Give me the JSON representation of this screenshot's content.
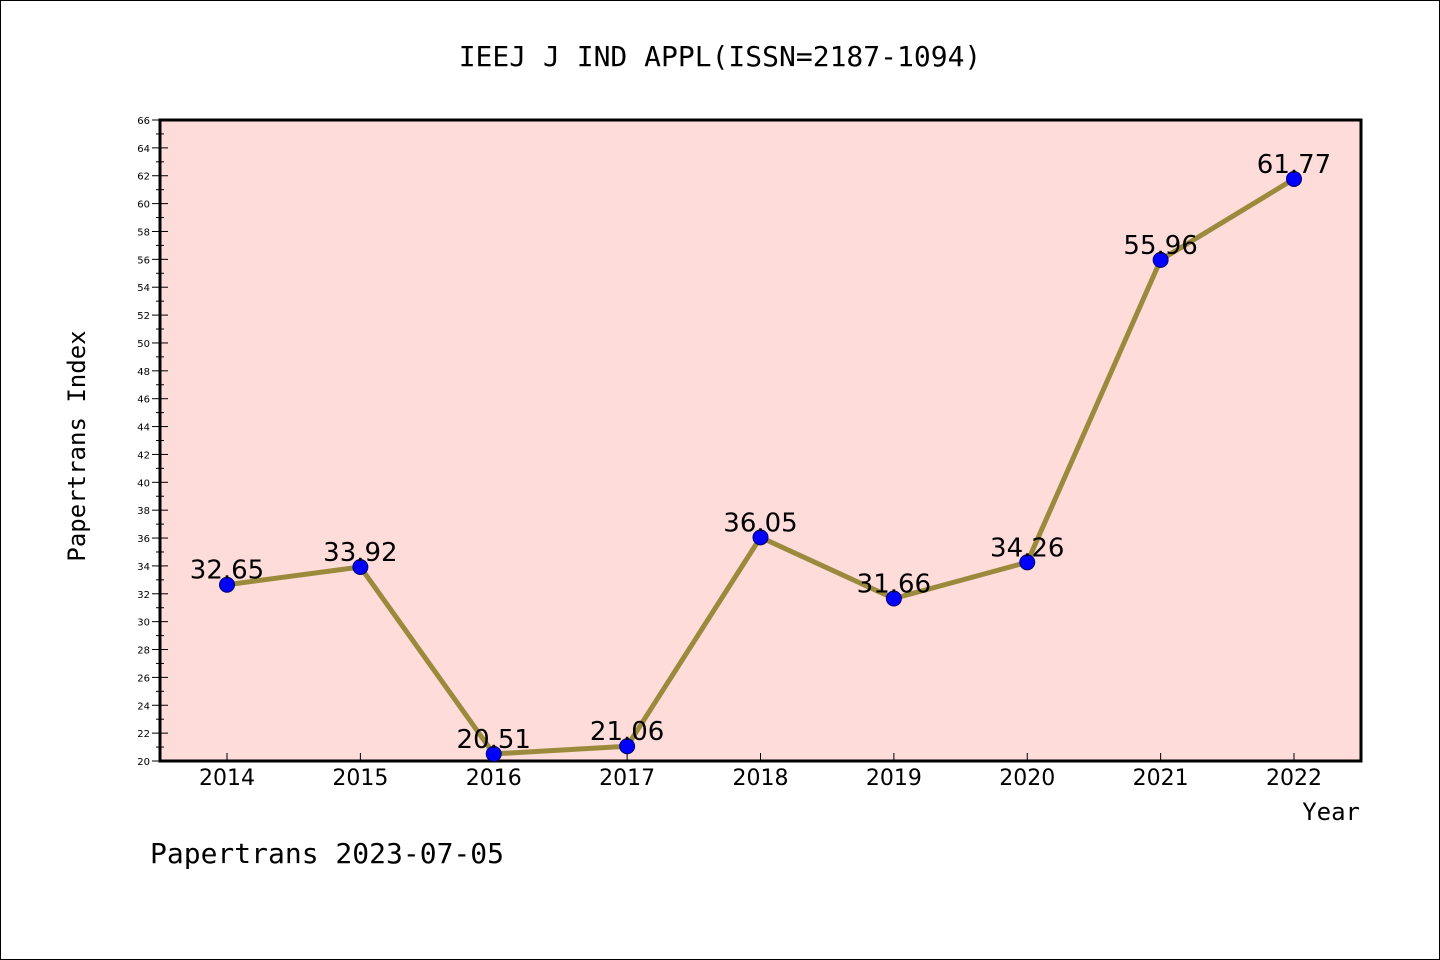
{
  "chart_data": {
    "type": "line",
    "title": "IEEJ J IND APPL(ISSN=2187-1094)",
    "xlabel": "Year",
    "ylabel": "Papertrans Index",
    "categories": [
      "2014",
      "2015",
      "2016",
      "2017",
      "2018",
      "2019",
      "2020",
      "2021",
      "2022"
    ],
    "series": [
      {
        "values": [
          32.65,
          33.92,
          20.51,
          21.06,
          36.05,
          31.66,
          34.26,
          55.96,
          61.77
        ]
      }
    ],
    "data_labels": [
      "32.65",
      "33.92",
      "20.51",
      "21.06",
      "36.05",
      "31.66",
      "34.26",
      "55.96",
      "61.77"
    ],
    "ylim": [
      20,
      66
    ],
    "yticks": [
      "20",
      "22",
      "24",
      "26",
      "28",
      "30",
      "32",
      "34",
      "36",
      "38",
      "40",
      "42",
      "44",
      "46",
      "48",
      "50",
      "52",
      "54",
      "56",
      "58",
      "60",
      "62",
      "64",
      "66"
    ],
    "grid": false,
    "legend": "none",
    "colors": {
      "plot_background": "#fddcda",
      "line": "#9b8a3c",
      "marker": "#0000ff"
    }
  },
  "footer": "Papertrans 2023-07-05"
}
